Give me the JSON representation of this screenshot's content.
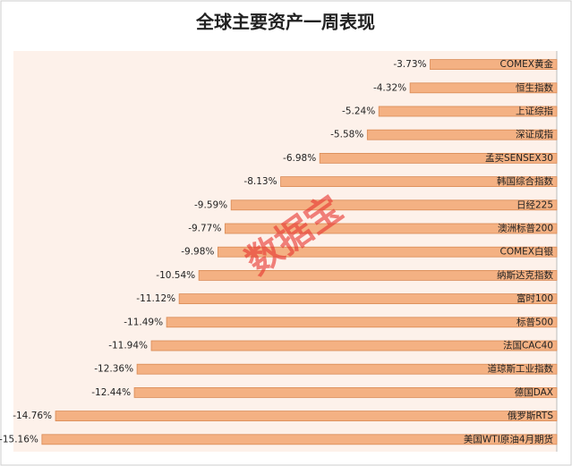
{
  "chart_data": {
    "type": "bar",
    "orientation": "horizontal",
    "title": "全球主要资产一周表现",
    "categories": [
      "COMEX黄金",
      "恒生指数",
      "上证综指",
      "深证成指",
      "孟买SENSEX30",
      "韩国综合指数",
      "日经225",
      "澳洲标普200",
      "COMEX白银",
      "纳斯达克指数",
      "富时100",
      "标普500",
      "法国CAC40",
      "道琼斯工业指数",
      "德国DAX",
      "俄罗斯RTS",
      "美国WTI原油4月期货"
    ],
    "values": [
      -3.73,
      -4.32,
      -5.24,
      -5.58,
      -6.98,
      -8.13,
      -9.59,
      -9.77,
      -9.98,
      -10.54,
      -11.12,
      -11.49,
      -11.94,
      -12.36,
      -12.44,
      -14.76,
      -15.16
    ],
    "value_labels": [
      "-3.73%",
      "-4.32%",
      "-5.24%",
      "-5.58%",
      "-6.98%",
      "-8.13%",
      "-9.59%",
      "-9.77%",
      "-9.98%",
      "-10.54%",
      "-11.12%",
      "-11.49%",
      "-11.94%",
      "-12.36%",
      "-12.44%",
      "-14.76%",
      "-15.16%"
    ],
    "color": "#f4b183",
    "xlim": [
      -16,
      0
    ],
    "watermark": "数据宝"
  }
}
